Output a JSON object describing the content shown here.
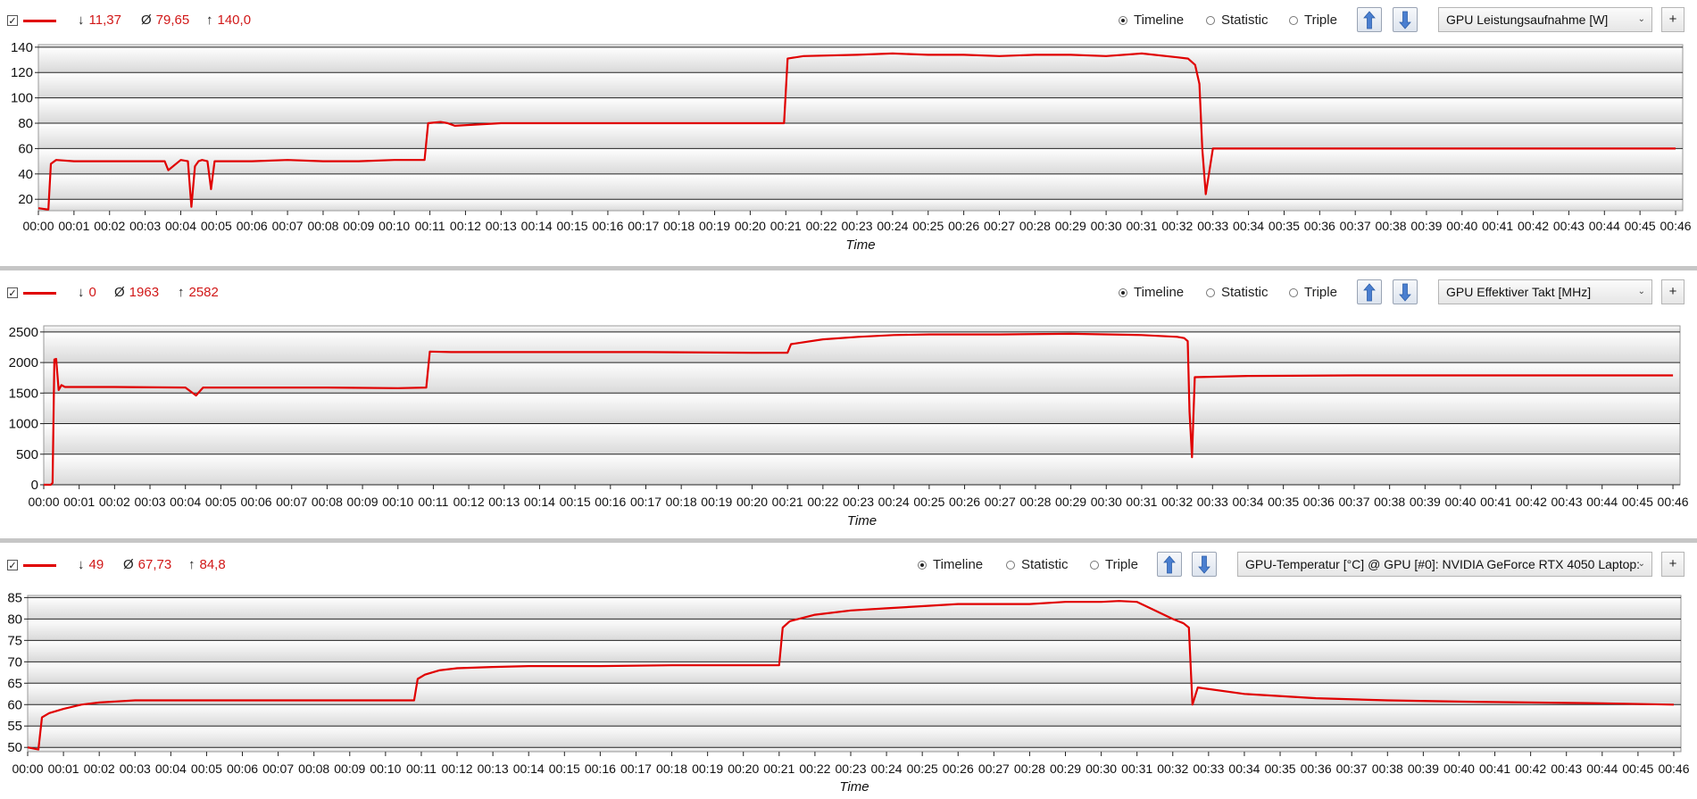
{
  "panels": [
    {
      "checkbox": "✓",
      "stats": {
        "min": "11,37",
        "avg": "79,65",
        "max": "140,0"
      },
      "symbols": {
        "min": "↓",
        "avg": "Ø",
        "max": "↑"
      },
      "modes": [
        "Timeline",
        "Statistic",
        "Triple"
      ],
      "selected_mode": "Timeline",
      "sensor": "GPU Leistungsaufnahme [W]",
      "plus": "+"
    },
    {
      "checkbox": "✓",
      "stats": {
        "min": "0",
        "avg": "1963",
        "max": "2582"
      },
      "symbols": {
        "min": "↓",
        "avg": "Ø",
        "max": "↑"
      },
      "modes": [
        "Timeline",
        "Statistic",
        "Triple"
      ],
      "selected_mode": "Timeline",
      "sensor": "GPU Effektiver Takt [MHz]",
      "plus": "+"
    },
    {
      "checkbox": "✓",
      "stats": {
        "min": "49",
        "avg": "67,73",
        "max": "84,8"
      },
      "symbols": {
        "min": "↓",
        "avg": "Ø",
        "max": "↑"
      },
      "modes": [
        "Timeline",
        "Statistic",
        "Triple"
      ],
      "selected_mode": "Timeline",
      "sensor": "GPU-Temperatur [°C] @ GPU [#0]: NVIDIA GeForce RTX 4050 Laptop:",
      "plus": "+"
    }
  ],
  "colors": {
    "series": "#e00000",
    "stat_text": "#d11818",
    "arrow_icon": "#4a7fd0"
  },
  "chart_data": [
    {
      "type": "line",
      "xlabel": "Time",
      "ylabel": "",
      "title": "",
      "x_ticks": [
        "00:00",
        "00:01",
        "00:02",
        "00:03",
        "00:04",
        "00:05",
        "00:06",
        "00:07",
        "00:08",
        "00:09",
        "00:10",
        "00:11",
        "00:12",
        "00:13",
        "00:14",
        "00:15",
        "00:16",
        "00:17",
        "00:18",
        "00:19",
        "00:20",
        "00:21",
        "00:22",
        "00:23",
        "00:24",
        "00:25",
        "00:26",
        "00:27",
        "00:28",
        "00:29",
        "00:30",
        "00:31",
        "00:32",
        "00:33",
        "00:34",
        "00:35",
        "00:36",
        "00:37",
        "00:38",
        "00:39",
        "00:40",
        "00:41",
        "00:42",
        "00:43",
        "00:44",
        "00:45",
        "00:46"
      ],
      "xlim": [
        0,
        46.2
      ],
      "ylim": [
        11,
        142
      ],
      "y_ticks": [
        20,
        40,
        60,
        80,
        100,
        120,
        140
      ],
      "grid": true,
      "series": [
        {
          "x": [
            0,
            0.25,
            0.28,
            0.35,
            0.5,
            1,
            2,
            3,
            3.55,
            3.65,
            4,
            4.2,
            4.3,
            4.4,
            4.5,
            4.6,
            4.75,
            4.85,
            4.95,
            6,
            7,
            8,
            9,
            10,
            10.85,
            10.95,
            11.3,
            11.5,
            11.7,
            13,
            15,
            17,
            19,
            20.95,
            21.05,
            21.5,
            23,
            24,
            25,
            26,
            27,
            28,
            29,
            30,
            31,
            32,
            32.3,
            32.5,
            32.62,
            32.7,
            32.8,
            33,
            35,
            37,
            40,
            43,
            46
          ],
          "values": [
            13,
            12,
            12,
            48,
            51,
            50,
            50,
            50,
            50,
            43,
            51,
            50,
            14,
            46,
            50,
            51,
            50,
            28,
            50,
            50,
            51,
            50,
            50,
            51,
            51,
            80,
            81,
            80,
            78,
            80,
            80,
            80,
            80,
            80,
            131,
            133,
            134,
            135,
            134,
            134,
            133,
            134,
            134,
            133,
            135,
            132,
            131,
            126,
            111,
            60,
            24,
            60,
            60,
            60,
            60,
            60,
            60
          ]
        }
      ]
    },
    {
      "type": "line",
      "xlabel": "Time",
      "ylabel": "",
      "title": "",
      "x_ticks": [
        "00:00",
        "00:01",
        "00:02",
        "00:03",
        "00:04",
        "00:05",
        "00:06",
        "00:07",
        "00:08",
        "00:09",
        "00:10",
        "00:11",
        "00:12",
        "00:13",
        "00:14",
        "00:15",
        "00:16",
        "00:17",
        "00:18",
        "00:19",
        "00:20",
        "00:21",
        "00:22",
        "00:23",
        "00:24",
        "00:25",
        "00:26",
        "00:27",
        "00:28",
        "00:29",
        "00:30",
        "00:31",
        "00:32",
        "00:33",
        "00:34",
        "00:35",
        "00:36",
        "00:37",
        "00:38",
        "00:39",
        "00:40",
        "00:41",
        "00:42",
        "00:43",
        "00:44",
        "00:45",
        "00:46"
      ],
      "xlim": [
        0,
        46.2
      ],
      "ylim": [
        0,
        2600
      ],
      "y_ticks": [
        0,
        500,
        1000,
        1500,
        2000,
        2500
      ],
      "grid": true,
      "series": [
        {
          "x": [
            0,
            0.2,
            0.25,
            0.3,
            0.35,
            0.42,
            0.5,
            0.6,
            2,
            4,
            4.3,
            4.5,
            6,
            8,
            10,
            10.8,
            10.9,
            11.5,
            14,
            17,
            20,
            21,
            21.1,
            22,
            23,
            24,
            25,
            27,
            29,
            31,
            32,
            32.2,
            32.3,
            32.35,
            32.42,
            32.5,
            34,
            37,
            40,
            43,
            46
          ],
          "values": [
            0,
            0,
            30,
            2050,
            2060,
            1550,
            1630,
            1600,
            1600,
            1590,
            1460,
            1590,
            1590,
            1590,
            1580,
            1590,
            2180,
            2170,
            2170,
            2170,
            2160,
            2160,
            2300,
            2380,
            2420,
            2450,
            2460,
            2460,
            2470,
            2450,
            2420,
            2400,
            2350,
            1200,
            450,
            1760,
            1780,
            1790,
            1790,
            1790,
            1790
          ]
        }
      ]
    },
    {
      "type": "line",
      "xlabel": "Time",
      "ylabel": "",
      "title": "",
      "x_ticks": [
        "00:00",
        "00:01",
        "00:02",
        "00:03",
        "00:04",
        "00:05",
        "00:06",
        "00:07",
        "00:08",
        "00:09",
        "00:10",
        "00:11",
        "00:12",
        "00:13",
        "00:14",
        "00:15",
        "00:16",
        "00:17",
        "00:18",
        "00:19",
        "00:20",
        "00:21",
        "00:22",
        "00:23",
        "00:24",
        "00:25",
        "00:26",
        "00:27",
        "00:28",
        "00:29",
        "00:30",
        "00:31",
        "00:32",
        "00:33",
        "00:34",
        "00:35",
        "00:36",
        "00:37",
        "00:38",
        "00:39",
        "00:40",
        "00:41",
        "00:42",
        "00:43",
        "00:44",
        "00:45",
        "00:46"
      ],
      "xlim": [
        0,
        46.2
      ],
      "ylim": [
        49,
        85.5
      ],
      "y_ticks": [
        50,
        55,
        60,
        65,
        70,
        75,
        80,
        85
      ],
      "grid": true,
      "series": [
        {
          "x": [
            0,
            0.3,
            0.4,
            0.6,
            1,
            1.5,
            2,
            3,
            4,
            5,
            7,
            9,
            10.8,
            10.9,
            11.1,
            11.5,
            12,
            13,
            14,
            16,
            18,
            20,
            21,
            21.1,
            21.3,
            22,
            23,
            24,
            25,
            26,
            27,
            28,
            29,
            30,
            30.5,
            31,
            31.5,
            32,
            32.3,
            32.45,
            32.55,
            32.7,
            34,
            36,
            38,
            40,
            42,
            44,
            46
          ],
          "values": [
            50,
            49.5,
            57,
            58,
            59,
            60,
            60.5,
            61,
            61,
            61,
            61,
            61,
            61,
            66,
            67,
            68,
            68.5,
            68.8,
            69,
            69,
            69.2,
            69.2,
            69.2,
            78,
            79.5,
            81,
            82,
            82.5,
            83,
            83.5,
            83.5,
            83.5,
            84,
            84,
            84.2,
            84,
            82,
            80,
            79,
            78,
            60,
            64,
            62.5,
            61.5,
            61,
            60.7,
            60.5,
            60.3,
            60
          ]
        }
      ]
    }
  ]
}
